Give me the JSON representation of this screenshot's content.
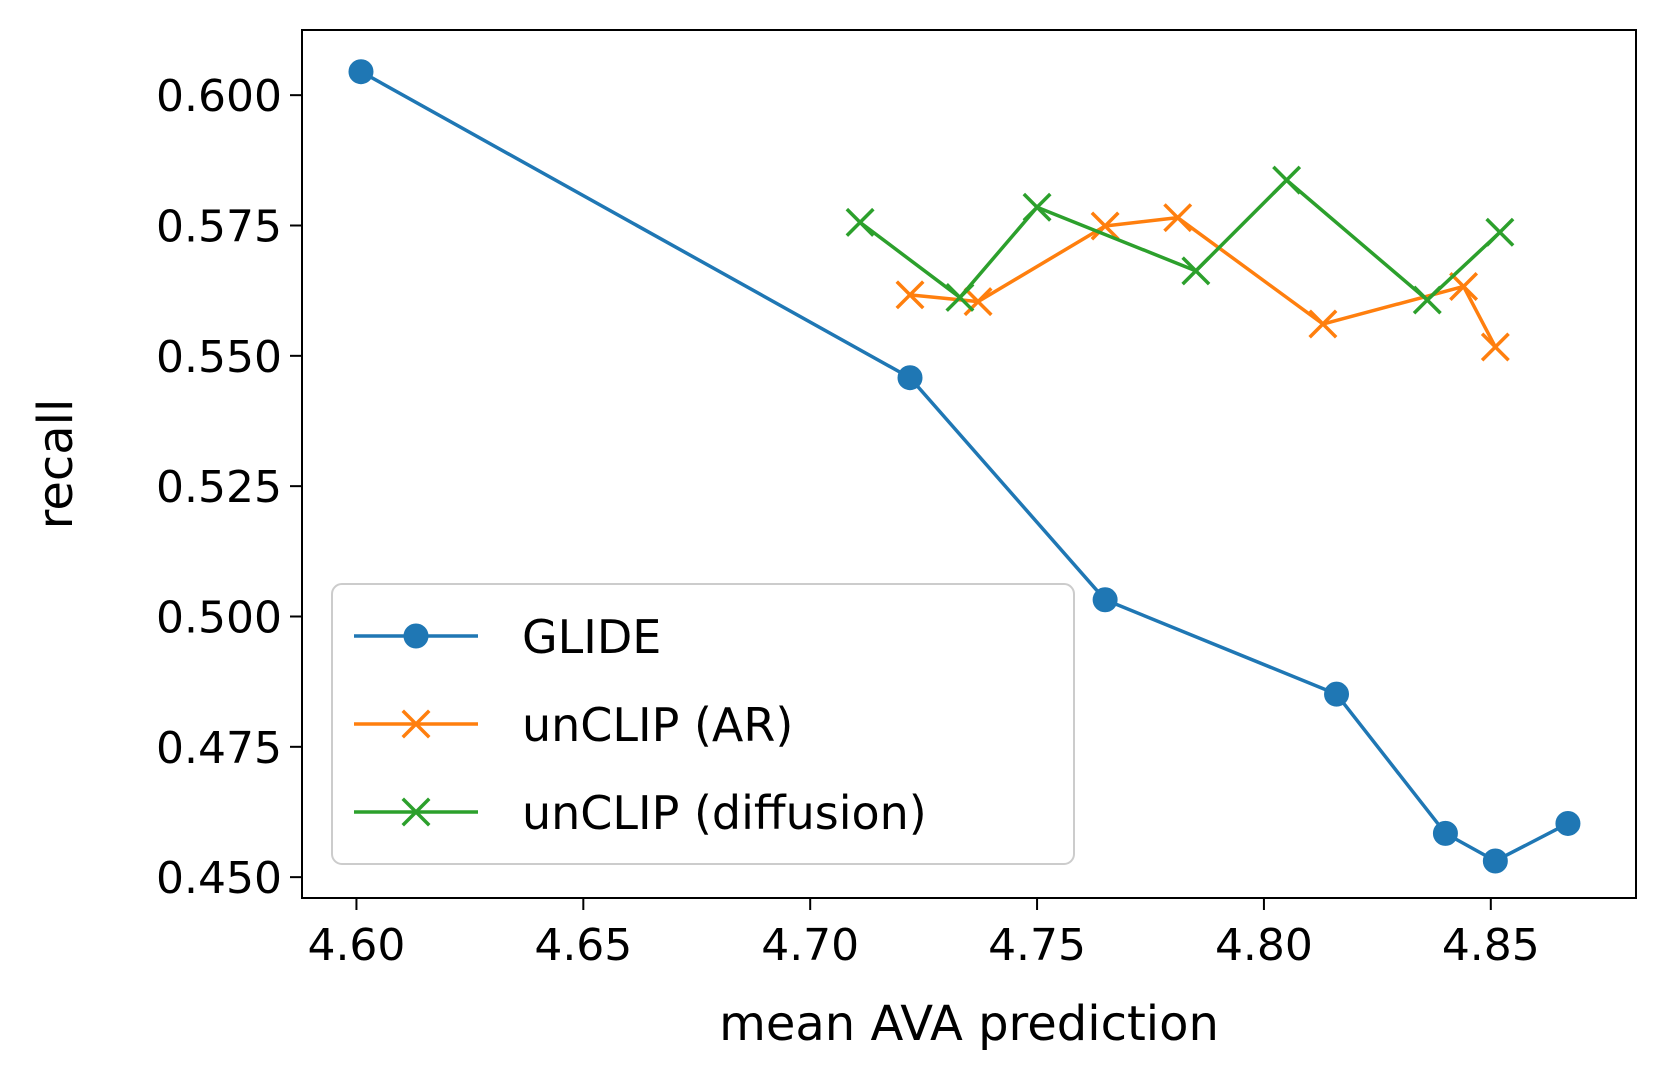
{
  "chart_data": {
    "type": "line",
    "xlabel": "mean AVA prediction",
    "ylabel": "recall",
    "xlim": [
      4.588,
      4.882
    ],
    "ylim": [
      0.446,
      0.6125
    ],
    "xticks": [
      4.6,
      4.65,
      4.7,
      4.75,
      4.8,
      4.85
    ],
    "xtick_labels": [
      "4.60",
      "4.65",
      "4.70",
      "4.75",
      "4.80",
      "4.85"
    ],
    "yticks": [
      0.45,
      0.475,
      0.5,
      0.525,
      0.55,
      0.575,
      0.6
    ],
    "ytick_labels": [
      "0.450",
      "0.475",
      "0.500",
      "0.525",
      "0.550",
      "0.575",
      "0.600"
    ],
    "grid": false,
    "legend_position": "lower-left",
    "series": [
      {
        "name": "GLIDE",
        "color": "#1f77b4",
        "marker": "circle",
        "x": [
          4.601,
          4.722,
          4.765,
          4.816,
          4.84,
          4.851,
          4.867
        ],
        "y": [
          0.6045,
          0.5458,
          0.5032,
          0.4851,
          0.4584,
          0.4531,
          0.4603
        ]
      },
      {
        "name": "unCLIP (AR)",
        "color": "#ff7f0e",
        "marker": "x",
        "x": [
          4.722,
          4.737,
          4.765,
          4.781,
          4.813,
          4.844,
          4.851
        ],
        "y": [
          0.5617,
          0.5604,
          0.5749,
          0.5765,
          0.5561,
          0.5633,
          0.5517
        ]
      },
      {
        "name": "unCLIP (diffusion)",
        "color": "#2ca02c",
        "marker": "x",
        "x": [
          4.711,
          4.733,
          4.75,
          4.785,
          4.805,
          4.836,
          4.852
        ],
        "y": [
          0.5756,
          0.5612,
          0.5785,
          0.5663,
          0.5837,
          0.5607,
          0.5737
        ]
      }
    ]
  }
}
